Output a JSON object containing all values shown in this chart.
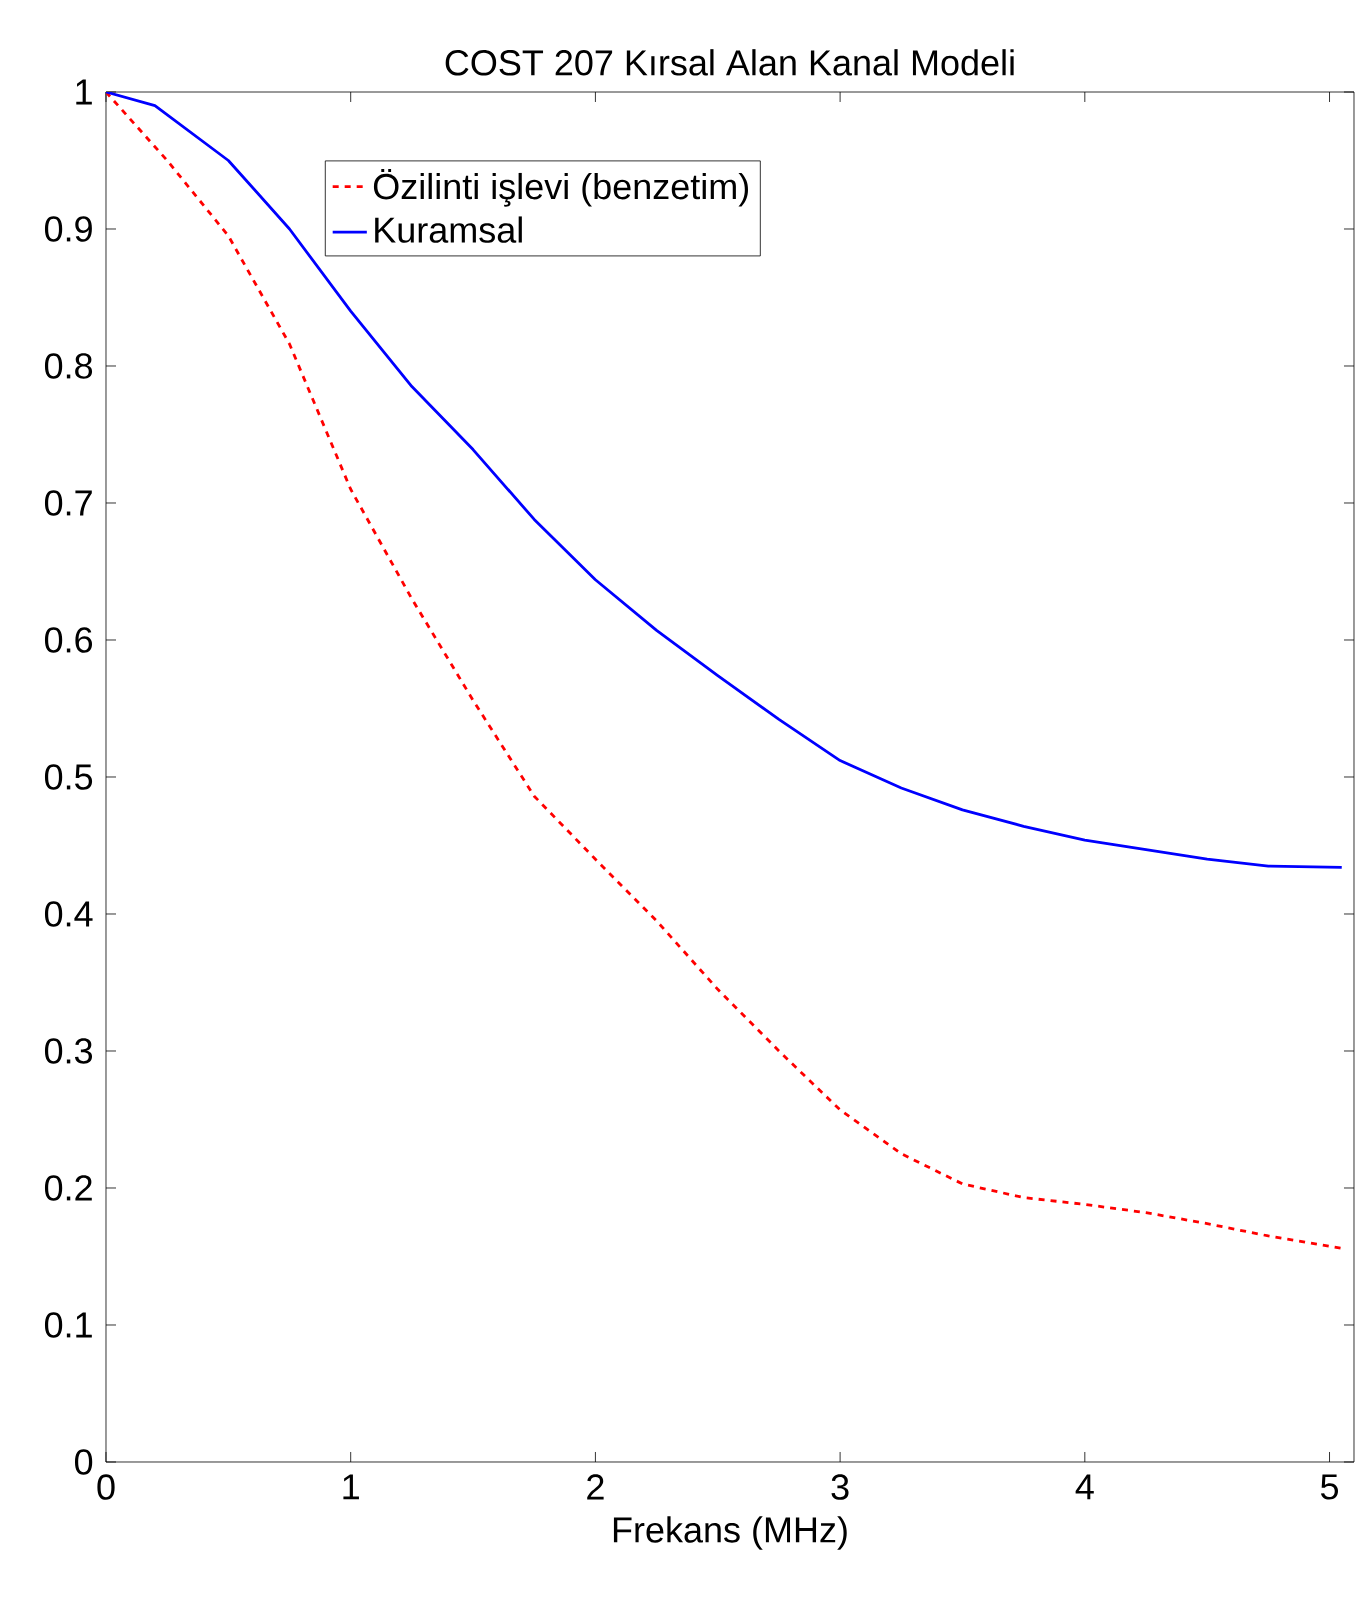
{
  "chart_data": {
    "type": "line",
    "title": "COST 207 Kırsal Alan Kanal Modeli",
    "xlabel": "Frekans (MHz)",
    "xlim": [
      0,
      5.1
    ],
    "ylim": [
      0,
      1
    ],
    "xticks": [
      0,
      1,
      2,
      3,
      4,
      5
    ],
    "yticks": [
      0,
      0.1,
      0.2,
      0.3,
      0.4,
      0.5,
      0.6,
      0.7,
      0.8,
      0.9,
      1
    ],
    "grid": false,
    "legend": "top",
    "marker": "none",
    "series": [
      {
        "name": "Özilinti işlevi (benzetim)",
        "color": "#ff0000",
        "line_style": "dashed",
        "x": [
          0,
          0.25,
          0.5,
          0.75,
          1,
          1.25,
          1.5,
          1.75,
          2,
          2.25,
          2.5,
          2.75,
          3,
          3.25,
          3.5,
          3.75,
          4,
          4.25,
          4.5,
          4.75,
          5.05
        ],
        "values": [
          1,
          0.95,
          0.895,
          0.816,
          0.71,
          0.63,
          0.556,
          0.486,
          0.44,
          0.395,
          0.345,
          0.3,
          0.257,
          0.225,
          0.203,
          0.193,
          0.188,
          0.182,
          0.174,
          0.165,
          0.156
        ]
      },
      {
        "name": "Kuramsal",
        "color": "#0000ff",
        "line_style": "solid",
        "x": [
          0,
          0.2,
          0.5,
          0.75,
          1,
          1.25,
          1.5,
          1.75,
          2,
          2.25,
          2.5,
          2.75,
          3,
          3.25,
          3.5,
          3.75,
          4,
          4.25,
          4.5,
          4.75,
          5.05
        ],
        "values": [
          1,
          0.99,
          0.95,
          0.9,
          0.84,
          0.785,
          0.739,
          0.688,
          0.644,
          0.607,
          0.574,
          0.542,
          0.512,
          0.492,
          0.476,
          0.464,
          0.454,
          0.447,
          0.44,
          0.435,
          0.434
        ]
      }
    ]
  }
}
